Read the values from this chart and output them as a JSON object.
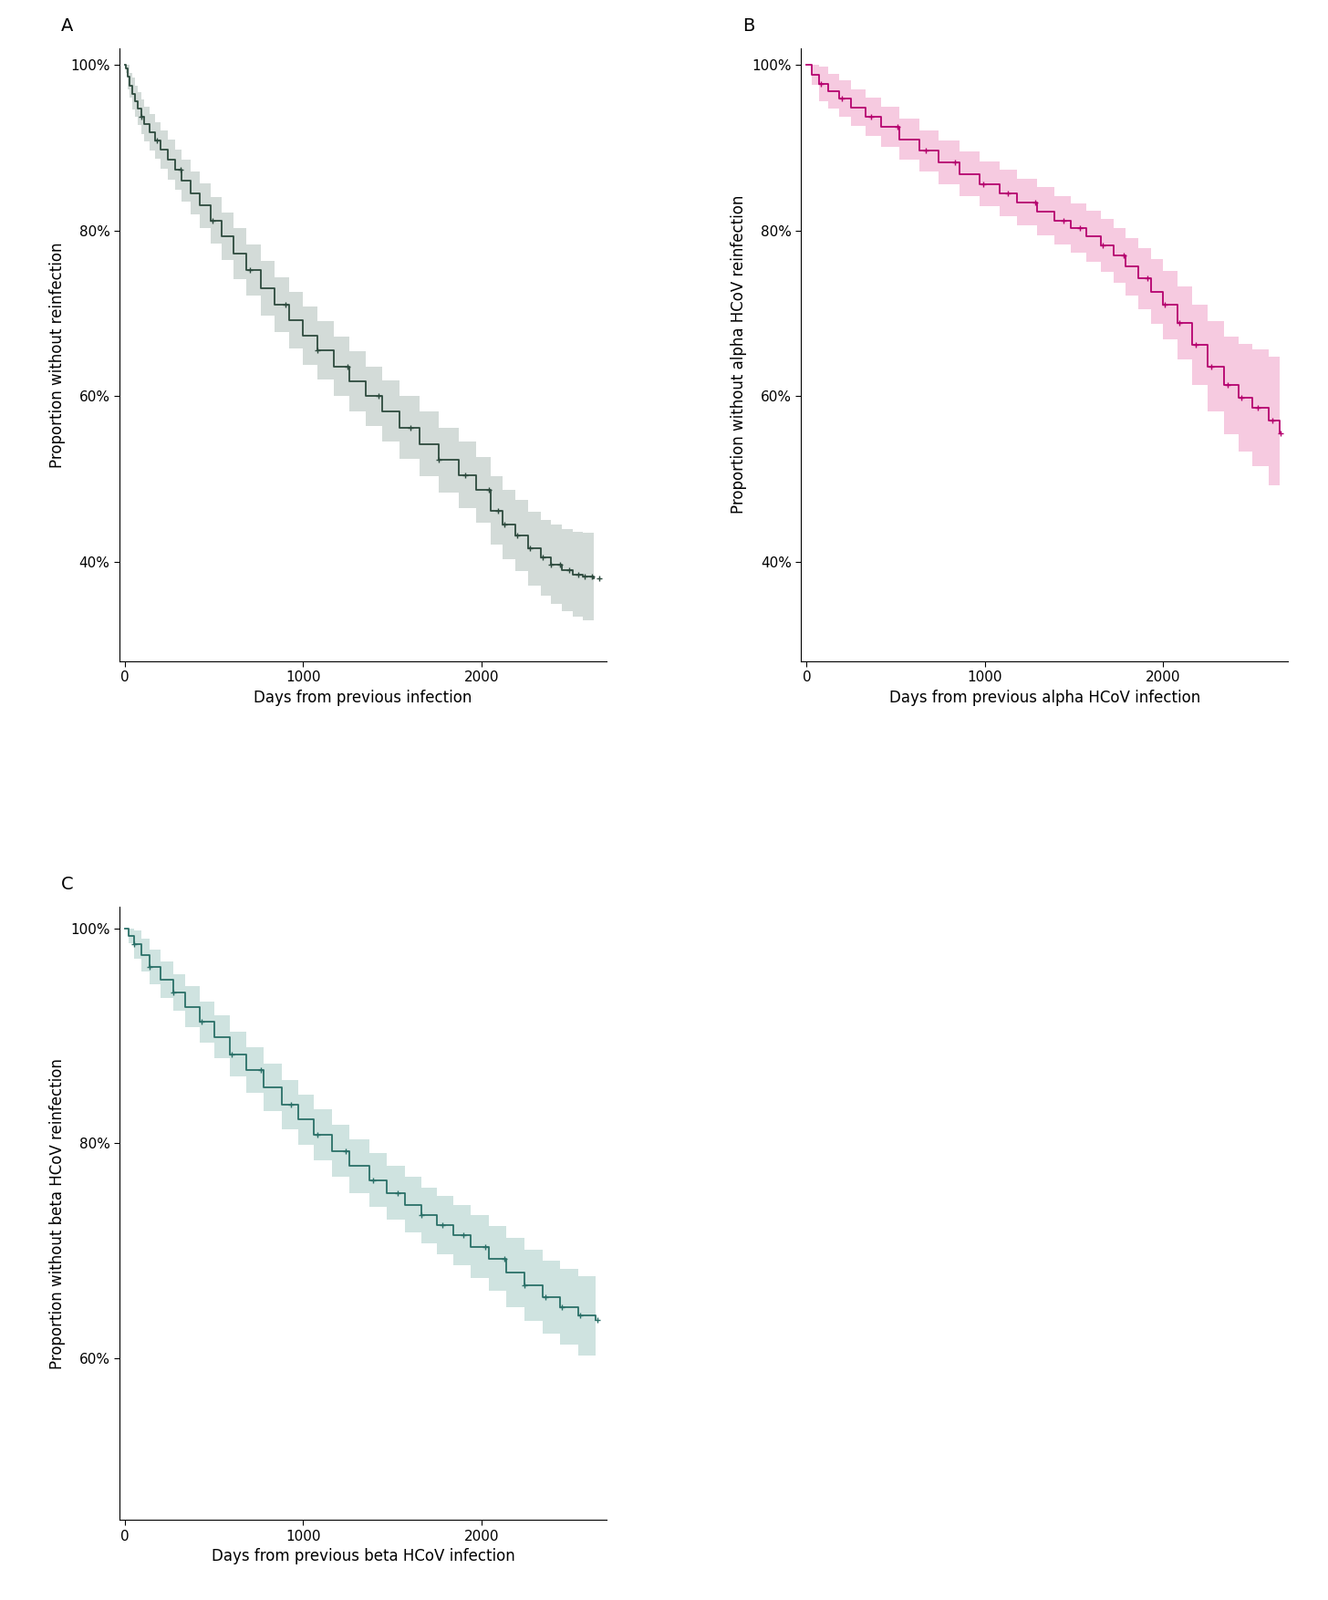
{
  "panel_A": {
    "line_color": "#2d4a3e",
    "ci_color": "#b0bfb8",
    "ci_alpha": 0.55,
    "ylabel": "Proportion without reinfection",
    "xlabel": "Days from previous infection",
    "ylim": [
      0.28,
      1.02
    ],
    "xlim": [
      -30,
      2700
    ],
    "yticks": [
      0.4,
      0.6,
      0.8,
      1.0
    ],
    "ytick_labels": [
      "40%",
      "60%",
      "80%",
      "100%"
    ],
    "xticks": [
      0,
      1000,
      2000
    ],
    "label": "A",
    "km_times": [
      0,
      5,
      15,
      25,
      40,
      55,
      70,
      90,
      110,
      140,
      170,
      200,
      240,
      280,
      320,
      370,
      420,
      480,
      540,
      610,
      680,
      760,
      840,
      920,
      1000,
      1080,
      1170,
      1260,
      1350,
      1440,
      1540,
      1650,
      1760,
      1870,
      1970,
      2050,
      2120,
      2190,
      2260,
      2330,
      2390,
      2450,
      2510,
      2570,
      2630
    ],
    "km_surv": [
      1.0,
      0.995,
      0.985,
      0.975,
      0.965,
      0.956,
      0.947,
      0.937,
      0.928,
      0.918,
      0.908,
      0.897,
      0.885,
      0.873,
      0.86,
      0.845,
      0.83,
      0.812,
      0.793,
      0.772,
      0.752,
      0.73,
      0.71,
      0.692,
      0.673,
      0.655,
      0.636,
      0.618,
      0.6,
      0.582,
      0.562,
      0.542,
      0.523,
      0.505,
      0.487,
      0.462,
      0.445,
      0.432,
      0.416,
      0.405,
      0.397,
      0.39,
      0.385,
      0.382,
      0.38
    ],
    "km_upper": [
      1.0,
      1.0,
      1.0,
      0.99,
      0.984,
      0.975,
      0.967,
      0.958,
      0.949,
      0.94,
      0.93,
      0.92,
      0.909,
      0.897,
      0.885,
      0.871,
      0.857,
      0.84,
      0.822,
      0.803,
      0.783,
      0.763,
      0.743,
      0.726,
      0.708,
      0.69,
      0.672,
      0.654,
      0.636,
      0.619,
      0.6,
      0.581,
      0.562,
      0.545,
      0.527,
      0.503,
      0.487,
      0.475,
      0.461,
      0.451,
      0.445,
      0.44,
      0.436,
      0.435,
      0.434
    ],
    "km_lower": [
      1.0,
      0.99,
      0.97,
      0.96,
      0.946,
      0.937,
      0.927,
      0.916,
      0.907,
      0.896,
      0.886,
      0.874,
      0.861,
      0.849,
      0.835,
      0.819,
      0.803,
      0.784,
      0.764,
      0.741,
      0.721,
      0.697,
      0.677,
      0.658,
      0.638,
      0.62,
      0.6,
      0.582,
      0.564,
      0.545,
      0.524,
      0.503,
      0.484,
      0.465,
      0.447,
      0.421,
      0.403,
      0.389,
      0.371,
      0.359,
      0.349,
      0.34,
      0.334,
      0.329,
      0.326
    ],
    "censor_times": [
      90,
      180,
      310,
      490,
      700,
      900,
      1080,
      1250,
      1420,
      1600,
      1760,
      1910,
      2040,
      2090,
      2130,
      2200,
      2270,
      2340,
      2390,
      2440,
      2490,
      2540,
      2580,
      2620,
      2660
    ]
  },
  "panel_B": {
    "line_color": "#b5006e",
    "ci_color": "#f0a0c8",
    "ci_alpha": 0.55,
    "ylabel": "Proportion without alpha HCoV reinfection",
    "xlabel": "Days from previous alpha HCoV infection",
    "ylim": [
      0.28,
      1.02
    ],
    "xlim": [
      -30,
      2700
    ],
    "yticks": [
      0.4,
      0.6,
      0.8,
      1.0
    ],
    "ytick_labels": [
      "40%",
      "60%",
      "80%",
      "100%"
    ],
    "xticks": [
      0,
      1000,
      2000
    ],
    "label": "B",
    "km_times": [
      0,
      30,
      70,
      120,
      180,
      250,
      330,
      420,
      520,
      630,
      740,
      860,
      970,
      1080,
      1180,
      1290,
      1390,
      1480,
      1570,
      1650,
      1720,
      1790,
      1860,
      1930,
      2000,
      2080,
      2160,
      2250,
      2340,
      2420,
      2500,
      2590,
      2650
    ],
    "km_surv": [
      1.0,
      0.988,
      0.977,
      0.968,
      0.959,
      0.948,
      0.937,
      0.925,
      0.91,
      0.896,
      0.882,
      0.868,
      0.856,
      0.845,
      0.834,
      0.823,
      0.812,
      0.803,
      0.793,
      0.782,
      0.77,
      0.756,
      0.742,
      0.726,
      0.71,
      0.688,
      0.662,
      0.636,
      0.613,
      0.598,
      0.586,
      0.57,
      0.555
    ],
    "km_upper": [
      1.0,
      1.0,
      0.998,
      0.989,
      0.981,
      0.97,
      0.96,
      0.949,
      0.935,
      0.921,
      0.908,
      0.895,
      0.883,
      0.873,
      0.862,
      0.852,
      0.841,
      0.833,
      0.824,
      0.814,
      0.803,
      0.791,
      0.779,
      0.765,
      0.751,
      0.732,
      0.71,
      0.69,
      0.672,
      0.663,
      0.656,
      0.648,
      0.64
    ],
    "km_lower": [
      1.0,
      0.976,
      0.956,
      0.947,
      0.937,
      0.926,
      0.914,
      0.901,
      0.885,
      0.871,
      0.856,
      0.841,
      0.829,
      0.817,
      0.806,
      0.794,
      0.783,
      0.773,
      0.762,
      0.75,
      0.737,
      0.721,
      0.705,
      0.687,
      0.669,
      0.644,
      0.614,
      0.582,
      0.554,
      0.533,
      0.516,
      0.492,
      0.47
    ],
    "censor_times": [
      80,
      200,
      360,
      510,
      670,
      830,
      990,
      1130,
      1280,
      1440,
      1530,
      1660,
      1780,
      1910,
      2010,
      2090,
      2180,
      2270,
      2360,
      2440,
      2530,
      2610,
      2660
    ]
  },
  "panel_C": {
    "line_color": "#2a7068",
    "ci_color": "#a8ccc8",
    "ci_alpha": 0.55,
    "ylabel": "Proportion without beta HCoV reinfection",
    "xlabel": "Days from previous beta HCoV infection",
    "ylim": [
      0.45,
      1.02
    ],
    "xlim": [
      -30,
      2700
    ],
    "yticks": [
      0.6,
      0.8,
      1.0
    ],
    "ytick_labels": [
      "60%",
      "80%",
      "100%"
    ],
    "xticks": [
      0,
      1000,
      2000
    ],
    "label": "C",
    "km_times": [
      0,
      20,
      50,
      90,
      140,
      200,
      270,
      340,
      420,
      500,
      590,
      680,
      780,
      880,
      970,
      1060,
      1160,
      1260,
      1370,
      1470,
      1570,
      1660,
      1750,
      1840,
      1940,
      2040,
      2140,
      2240,
      2340,
      2440,
      2540,
      2640
    ],
    "km_surv": [
      1.0,
      0.993,
      0.985,
      0.975,
      0.964,
      0.952,
      0.94,
      0.927,
      0.913,
      0.899,
      0.883,
      0.868,
      0.852,
      0.836,
      0.822,
      0.808,
      0.793,
      0.779,
      0.766,
      0.754,
      0.743,
      0.733,
      0.724,
      0.715,
      0.704,
      0.693,
      0.68,
      0.668,
      0.657,
      0.648,
      0.64,
      0.636
    ],
    "km_upper": [
      1.0,
      1.0,
      0.998,
      0.99,
      0.98,
      0.969,
      0.957,
      0.946,
      0.932,
      0.919,
      0.904,
      0.889,
      0.874,
      0.859,
      0.845,
      0.832,
      0.817,
      0.804,
      0.791,
      0.779,
      0.769,
      0.759,
      0.751,
      0.743,
      0.733,
      0.723,
      0.712,
      0.701,
      0.691,
      0.683,
      0.677,
      0.674
    ],
    "km_lower": [
      1.0,
      0.986,
      0.972,
      0.96,
      0.948,
      0.935,
      0.923,
      0.908,
      0.894,
      0.879,
      0.862,
      0.847,
      0.83,
      0.813,
      0.799,
      0.784,
      0.769,
      0.754,
      0.741,
      0.729,
      0.717,
      0.707,
      0.697,
      0.687,
      0.675,
      0.663,
      0.648,
      0.635,
      0.623,
      0.613,
      0.603,
      0.598
    ],
    "censor_times": [
      50,
      140,
      270,
      430,
      600,
      760,
      930,
      1080,
      1240,
      1390,
      1530,
      1660,
      1780,
      1900,
      2020,
      2130,
      2240,
      2360,
      2450,
      2550,
      2650
    ]
  },
  "figure_bg": "#ffffff",
  "axes_bg": "#ffffff",
  "tick_fontsize": 11,
  "label_fontsize": 12,
  "panel_label_fontsize": 14
}
